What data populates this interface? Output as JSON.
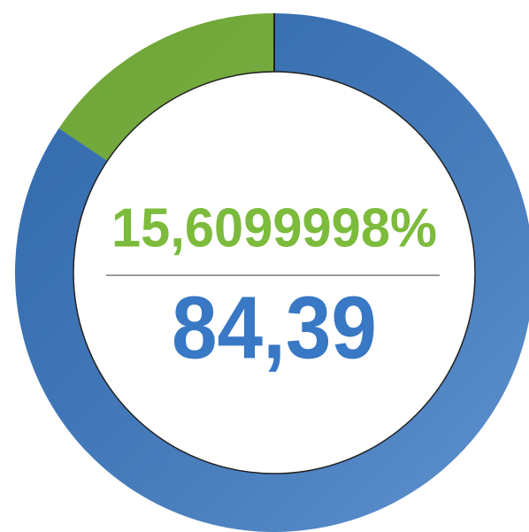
{
  "chart_data": {
    "type": "pie",
    "values": [
      15.6099998,
      84.39
    ],
    "value_labels": [
      "15,6099998%",
      "84,39"
    ],
    "colors": [
      "#7cbb3c",
      "#3878c4"
    ]
  }
}
